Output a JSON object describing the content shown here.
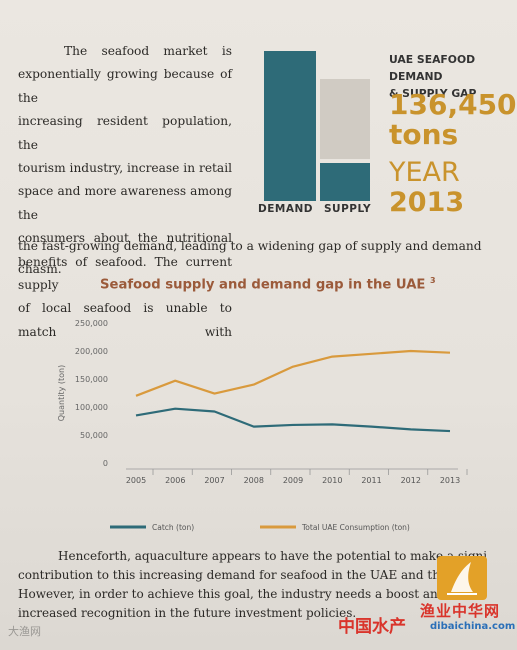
{
  "intro": {
    "lines": [
      "The seafood market is",
      "exponentially growing because of the",
      "increasing resident population, the",
      "tourism industry, increase in retail",
      "space and more awareness among the",
      "consumers about the nutritional",
      "benefits of seafood. The current supply",
      "of local seafood is unable to match with"
    ],
    "continuation": "the fast-growing demand, leading to a widening gap of supply and demand chasm."
  },
  "infographic": {
    "title_line1": "UAE SEAFOOD DEMAND",
    "title_line2": "& SUPPLY GAP",
    "gap_value": "136,450",
    "gap_unit": "tons",
    "year_label": "YEAR",
    "year_value": "2013",
    "demand_label": "DEMAND",
    "supply_label": "SUPPLY",
    "colors": {
      "bar": "#2e6b78",
      "gap": "#d0cbc3",
      "accent": "#c9932c"
    }
  },
  "chart_title": "Seafood supply and demand gap in the UAE",
  "chart_footnote": "3",
  "chart_data": {
    "type": "line",
    "x": [
      "2005",
      "2006",
      "2007",
      "2008",
      "2009",
      "2010",
      "2011",
      "2012",
      "2013"
    ],
    "series": [
      {
        "name": "Catch (ton)",
        "color": "#2e6b78",
        "values": [
          85000,
          97000,
          92000,
          65000,
          68000,
          69000,
          65000,
          60000,
          57000
        ]
      },
      {
        "name": "Total UAE Consumption (ton)",
        "color": "#d99a3d",
        "values": [
          120000,
          147000,
          124000,
          140000,
          172000,
          190000,
          195000,
          200000,
          197000
        ]
      }
    ],
    "ylabel": "Quantity (ton)",
    "ylim": [
      0,
      250000
    ],
    "yticks": [
      "250,000",
      "200,000",
      "150,000",
      "100,000",
      "50,000",
      "0"
    ],
    "grid": false,
    "legend": "bottom"
  },
  "outro": {
    "line1": "Henceforth, aquaculture appears to have the potential to make a signi",
    "line2": "contribution to this increasing demand for seafood in the UAE and the re",
    "line3": "However, in order to achieve this goal, the industry needs a boost and",
    "line4": "increased recognition in the future investment policies."
  },
  "watermark": {
    "left_text": "大渔网",
    "brand_cn": "渔业中华网",
    "brand_cn2": "中国水产",
    "brand_url": "dibaichina.com"
  }
}
